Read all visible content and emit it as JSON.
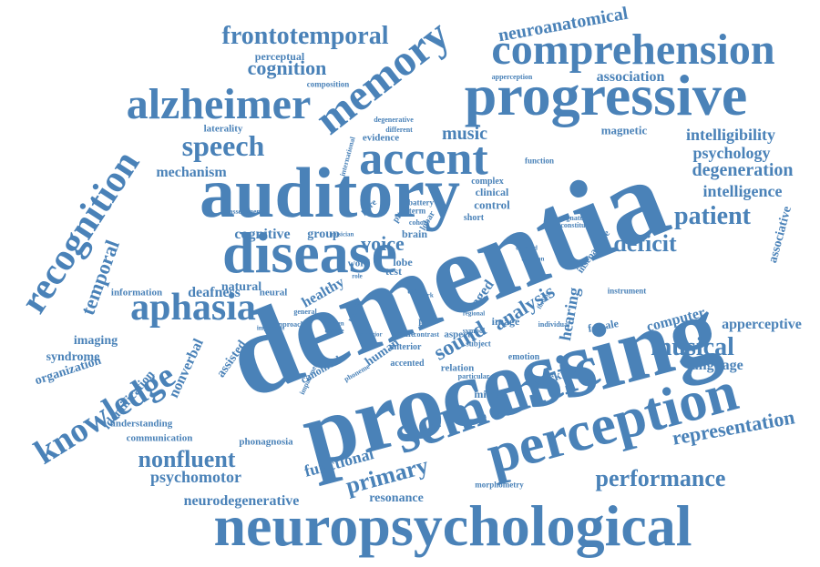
{
  "word_color": "#4a82b8",
  "words": [
    {
      "text": "neuropsychological"
    },
    {
      "text": "dementia"
    },
    {
      "text": "processing"
    },
    {
      "text": "progressive"
    },
    {
      "text": "auditory"
    },
    {
      "text": "semantic"
    },
    {
      "text": "perception"
    },
    {
      "text": "disease"
    },
    {
      "text": "comprehension"
    },
    {
      "text": "alzheimer"
    },
    {
      "text": "accent"
    },
    {
      "text": "memory"
    },
    {
      "text": "recognition"
    },
    {
      "text": "aphasia"
    },
    {
      "text": "knowledge"
    },
    {
      "text": "speech"
    },
    {
      "text": "frontotemporal"
    },
    {
      "text": "musical"
    },
    {
      "text": "patient"
    },
    {
      "text": "performance"
    },
    {
      "text": "primary"
    },
    {
      "text": "nonfluent"
    },
    {
      "text": "cognition"
    },
    {
      "text": "representation"
    },
    {
      "text": "deficit"
    },
    {
      "text": "sound"
    },
    {
      "text": "analysis"
    },
    {
      "text": "voice"
    },
    {
      "text": "temporal"
    },
    {
      "text": "neuroanatomical"
    },
    {
      "text": "degeneration"
    },
    {
      "text": "intelligibility"
    },
    {
      "text": "intelligence"
    },
    {
      "text": "psychology"
    },
    {
      "text": "association"
    },
    {
      "text": "mechanism"
    },
    {
      "text": "cognitive"
    },
    {
      "text": "group"
    },
    {
      "text": "music"
    },
    {
      "text": "functional"
    },
    {
      "text": "psychomotor"
    },
    {
      "text": "neurodegenerative"
    },
    {
      "text": "resonance"
    },
    {
      "text": "computer"
    },
    {
      "text": "apperceptive"
    },
    {
      "text": "language"
    },
    {
      "text": "associative"
    },
    {
      "text": "deafness"
    },
    {
      "text": "hearing"
    },
    {
      "text": "healthy"
    },
    {
      "text": "imaging"
    },
    {
      "text": "syndrome"
    },
    {
      "text": "organization"
    },
    {
      "text": "nonverbal"
    },
    {
      "text": "identification"
    },
    {
      "text": "assisted"
    },
    {
      "text": "aged"
    },
    {
      "text": "magnetic"
    },
    {
      "text": "perceptual"
    },
    {
      "text": "composition"
    },
    {
      "text": "laterality"
    },
    {
      "text": "evidence"
    },
    {
      "text": "control"
    },
    {
      "text": "clinical"
    },
    {
      "text": "natural"
    },
    {
      "text": "information"
    },
    {
      "text": "neural"
    },
    {
      "text": "working"
    },
    {
      "text": "female"
    },
    {
      "text": "image"
    },
    {
      "text": "test"
    },
    {
      "text": "word"
    },
    {
      "text": "lobe"
    },
    {
      "text": "brain"
    },
    {
      "text": "human"
    },
    {
      "text": "pnfa"
    },
    {
      "text": "middle"
    },
    {
      "text": "relation"
    },
    {
      "text": "canonical"
    },
    {
      "text": "communication"
    },
    {
      "text": "understanding"
    },
    {
      "text": "phonagnosia"
    },
    {
      "text": "morphometry"
    },
    {
      "text": "function"
    },
    {
      "text": "complex"
    },
    {
      "text": "short"
    },
    {
      "text": "accented"
    },
    {
      "text": "anterior"
    },
    {
      "text": "aspect"
    },
    {
      "text": "male"
    },
    {
      "text": "emotion"
    },
    {
      "text": "instrument"
    },
    {
      "text": "apperception"
    },
    {
      "text": "different"
    },
    {
      "text": "degenerative"
    },
    {
      "text": "international"
    },
    {
      "text": "pure"
    },
    {
      "text": "pitch"
    },
    {
      "text": "lobar"
    },
    {
      "text": "battery"
    },
    {
      "text": "term"
    },
    {
      "text": "cohort"
    },
    {
      "text": "assessment"
    },
    {
      "text": "task"
    },
    {
      "text": "general"
    },
    {
      "text": "approach"
    },
    {
      "text": "important"
    },
    {
      "text": "impairment"
    },
    {
      "text": "phoneme"
    },
    {
      "text": "particular"
    },
    {
      "text": "symbol"
    },
    {
      "text": "subject"
    },
    {
      "text": "individual"
    },
    {
      "text": "contrast"
    },
    {
      "text": "signature"
    },
    {
      "text": "constitute"
    },
    {
      "text": "inseparable"
    },
    {
      "text": "detailed"
    },
    {
      "text": "addition"
    },
    {
      "text": "finding"
    },
    {
      "text": "regional"
    },
    {
      "text": "musician"
    },
    {
      "text": "profile"
    },
    {
      "text": "foreign"
    },
    {
      "text": "change"
    },
    {
      "text": "superior"
    },
    {
      "text": "role"
    },
    {
      "text": "work"
    }
  ]
}
